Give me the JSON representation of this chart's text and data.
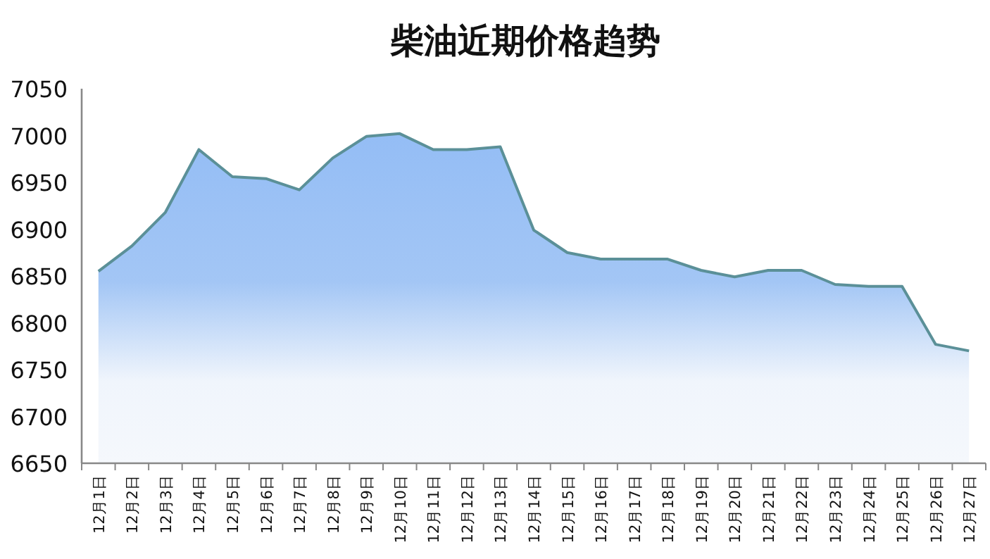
{
  "chart_data": {
    "type": "area",
    "title": "柴油近期价格趋势",
    "categories": [
      "12月1日",
      "12月2日",
      "12月3日",
      "12月4日",
      "12月5日",
      "12月6日",
      "12月7日",
      "12月8日",
      "12月9日",
      "12月10日",
      "12月11日",
      "12月12日",
      "12月13日",
      "12月14日",
      "12月15日",
      "12月16日",
      "12月17日",
      "12月18日",
      "12月19日",
      "12月20日",
      "12月21日",
      "12月22日",
      "12月23日",
      "12月24日",
      "12月25日",
      "12月26日",
      "12月27日"
    ],
    "series": [
      {
        "color": "#5b9098",
        "values": [
          6855,
          6882,
          6918,
          6985,
          6956,
          6954,
          6942,
          6976,
          6999,
          7002,
          6985,
          6985,
          6988,
          6899,
          6875,
          6868,
          6868,
          6868,
          6856,
          6849,
          6856,
          6856,
          6841,
          6839,
          6839,
          6777,
          6770
        ]
      }
    ],
    "ylim": [
      6650,
      7050
    ],
    "yticks": [
      6650,
      6700,
      6750,
      6800,
      6850,
      6900,
      6950,
      7000,
      7050
    ],
    "grid": false,
    "marker": "none"
  }
}
